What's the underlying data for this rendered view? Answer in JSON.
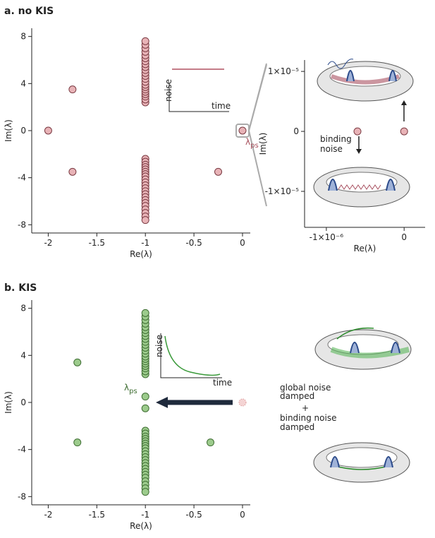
{
  "chart_data": [
    {
      "type": "scatter",
      "title": "a. no KIS",
      "xlabel": "Re(λ)",
      "ylabel": "Im(λ)",
      "xlim": [
        -2.17,
        0.08
      ],
      "ylim": [
        -8.7,
        8.7
      ],
      "xticks": [
        -2,
        -1.5,
        -1,
        -0.5,
        0
      ],
      "yticks": [
        -8,
        -4,
        0,
        4,
        8
      ],
      "series": [
        {
          "color": "#e8b3b7",
          "x": [
            -2,
            -1.75,
            -1.75,
            -0.25,
            0
          ],
          "y": [
            0,
            3.5,
            -3.5,
            -3.5,
            0
          ]
        },
        {
          "color": "#e8b3b7",
          "x": [
            -1,
            -1,
            -1,
            -1,
            -1,
            -1,
            -1,
            -1,
            -1,
            -1,
            -1,
            -1,
            -1,
            -1,
            -1,
            -1,
            -1,
            -1,
            -1,
            -1,
            -1,
            -1
          ],
          "y": [
            2.4,
            2.65,
            2.9,
            3.1,
            3.3,
            3.5,
            3.7,
            3.9,
            4.15,
            4.4,
            4.65,
            4.9,
            5.15,
            5.4,
            5.65,
            5.9,
            6.15,
            6.4,
            6.7,
            7,
            7.3,
            7.6
          ]
        },
        {
          "color": "#e8b3b7",
          "x": [
            -1,
            -1,
            -1,
            -1,
            -1,
            -1,
            -1,
            -1,
            -1,
            -1,
            -1,
            -1,
            -1,
            -1,
            -1,
            -1,
            -1,
            -1,
            -1,
            -1,
            -1,
            -1
          ],
          "y": [
            -2.4,
            -2.65,
            -2.9,
            -3.1,
            -3.3,
            -3.5,
            -3.7,
            -3.9,
            -4.15,
            -4.4,
            -4.65,
            -4.9,
            -5.15,
            -5.4,
            -5.65,
            -5.9,
            -6.15,
            -6.4,
            -6.7,
            -7,
            -7.3,
            -7.6
          ]
        }
      ],
      "inset": {
        "ylabel": "noise",
        "xlabel": "time"
      },
      "annotation": {
        "text": "λ",
        "sub": "ps"
      }
    },
    {
      "type": "scatter",
      "xlabel": "Re(λ)",
      "ylabel": "Im(λ)",
      "xlim": [
        -1.28e-06,
        2.7e-07
      ],
      "ylim": [
        -1.6e-05,
        1.19e-05
      ],
      "xticks": [
        {
          "value": -1e-06,
          "label": "-1×10⁻⁶"
        },
        0
      ],
      "yticks": [
        {
          "value": -1e-05,
          "label": "-1×10⁻⁵"
        },
        0,
        {
          "value": 1e-05,
          "label": "1×10⁻⁵"
        }
      ],
      "series": [
        {
          "color": "#e8b3b7",
          "x": [
            -6e-07,
            0
          ],
          "y": [
            0,
            0
          ]
        }
      ],
      "annotation_lines": [
        "binding",
        "noise"
      ]
    },
    {
      "type": "scatter",
      "title": "b. KIS",
      "xlabel": "Re(λ)",
      "ylabel": "Im(λ)",
      "xlim": [
        -2.17,
        0.08
      ],
      "ylim": [
        -8.7,
        8.7
      ],
      "xticks": [
        -2,
        -1.5,
        -1,
        -0.5,
        0
      ],
      "yticks": [
        -8,
        -4,
        0,
        4,
        8
      ],
      "series": [
        {
          "color": "#9ccb8c",
          "x": [
            -1.7,
            -1.7,
            -0.33,
            -1,
            -1
          ],
          "y": [
            3.4,
            -3.4,
            -3.4,
            0.5,
            -0.5
          ]
        },
        {
          "color": "#9ccb8c",
          "x": [
            -1,
            -1,
            -1,
            -1,
            -1,
            -1,
            -1,
            -1,
            -1,
            -1,
            -1,
            -1,
            -1,
            -1,
            -1,
            -1,
            -1,
            -1,
            -1,
            -1,
            -1,
            -1
          ],
          "y": [
            2.4,
            2.65,
            2.9,
            3.1,
            3.3,
            3.5,
            3.7,
            3.9,
            4.15,
            4.4,
            4.65,
            4.9,
            5.15,
            5.4,
            5.65,
            5.9,
            6.15,
            6.4,
            6.7,
            7,
            7.3,
            7.6
          ]
        },
        {
          "color": "#9ccb8c",
          "x": [
            -1,
            -1,
            -1,
            -1,
            -1,
            -1,
            -1,
            -1,
            -1,
            -1,
            -1,
            -1,
            -1,
            -1,
            -1,
            -1,
            -1,
            -1,
            -1,
            -1,
            -1,
            -1
          ],
          "y": [
            -2.4,
            -2.65,
            -2.9,
            -3.1,
            -3.3,
            -3.5,
            -3.7,
            -3.9,
            -4.15,
            -4.4,
            -4.65,
            -4.9,
            -5.15,
            -5.4,
            -5.65,
            -5.9,
            -6.15,
            -6.4,
            -6.7,
            -7,
            -7.3,
            -7.6
          ]
        },
        {
          "color": "#f4d4d4",
          "x": [
            0
          ],
          "y": [
            0
          ]
        }
      ],
      "inset": {
        "ylabel": "noise",
        "xlabel": "time"
      },
      "annotation": {
        "text": "λ",
        "sub": "ps"
      },
      "side_text": [
        "global noise",
        "damped",
        "+",
        "binding noise",
        "damped"
      ]
    }
  ]
}
